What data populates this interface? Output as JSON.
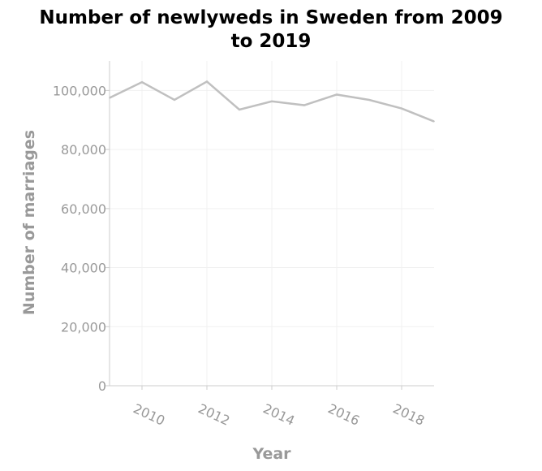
{
  "chart_data": {
    "type": "line",
    "title": "Number of newlyweds in Sweden from 2009 to 2019",
    "title_lines": [
      "Number of newlyweds in Sweden from 2009",
      "to 2019"
    ],
    "xlabel": "Year",
    "ylabel": "Number of marriages",
    "x": [
      2009,
      2010,
      2011,
      2012,
      2013,
      2014,
      2015,
      2016,
      2017,
      2018,
      2019
    ],
    "series": [
      {
        "values": [
          97500,
          102800,
          96800,
          103000,
          93500,
          96300,
          95000,
          98600,
          96800,
          93900,
          89500
        ]
      }
    ],
    "xlim": [
      2009,
      2019
    ],
    "ylim": [
      0,
      110000
    ],
    "xticks": [
      2010,
      2012,
      2014,
      2016,
      2018
    ],
    "xtick_labels": [
      "2010",
      "2012",
      "2014",
      "2016",
      "2018"
    ],
    "yticks": [
      0,
      20000,
      40000,
      60000,
      80000,
      100000
    ],
    "ytick_labels": [
      "0",
      "20,000",
      "40,000",
      "60,000",
      "80,000",
      "100,000"
    ],
    "grid": true,
    "colors": {
      "line": "#c0c0c0",
      "grid": "#f0f0f0",
      "axis": "#cccccc",
      "text": "#999999"
    }
  }
}
